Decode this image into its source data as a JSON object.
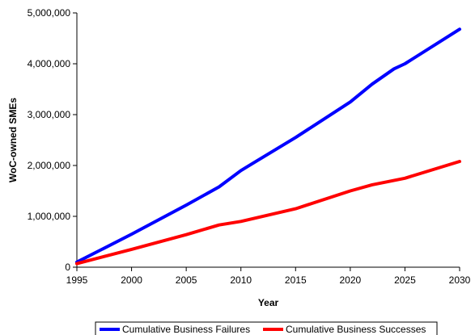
{
  "chart_data": {
    "type": "line",
    "title": "",
    "xlabel": "Year",
    "ylabel": "WoC-owned SMEs",
    "xlim": [
      1995,
      2030
    ],
    "ylim": [
      0,
      5000000
    ],
    "x_ticks": [
      1995,
      2000,
      2005,
      2010,
      2015,
      2020,
      2025,
      2030
    ],
    "y_ticks": [
      0,
      1000000,
      2000000,
      3000000,
      4000000,
      5000000
    ],
    "x_tick_labels": [
      "1995",
      "2000",
      "2005",
      "2010",
      "2015",
      "2020",
      "2025",
      "2030"
    ],
    "y_tick_labels": [
      "0",
      "1,000,000",
      "2,000,000",
      "3,000,000",
      "4,000,000",
      "5,000,000"
    ],
    "grid": false,
    "legend_position": "bottom",
    "series": [
      {
        "name": "Cumulative Business Failures",
        "color": "#0000ff",
        "x": [
          1995,
          2000,
          2005,
          2008,
          2010,
          2011,
          2015,
          2020,
          2022,
          2024,
          2025,
          2030
        ],
        "y": [
          100000,
          650000,
          1220000,
          1580000,
          1900000,
          2030000,
          2550000,
          3250000,
          3600000,
          3900000,
          4000000,
          4680000
        ]
      },
      {
        "name": "Cumulative Business Successes",
        "color": "#ff0000",
        "x": [
          1995,
          2000,
          2005,
          2008,
          2010,
          2015,
          2020,
          2022,
          2025,
          2030
        ],
        "y": [
          70000,
          350000,
          640000,
          830000,
          900000,
          1150000,
          1500000,
          1620000,
          1750000,
          2080000
        ]
      }
    ]
  }
}
